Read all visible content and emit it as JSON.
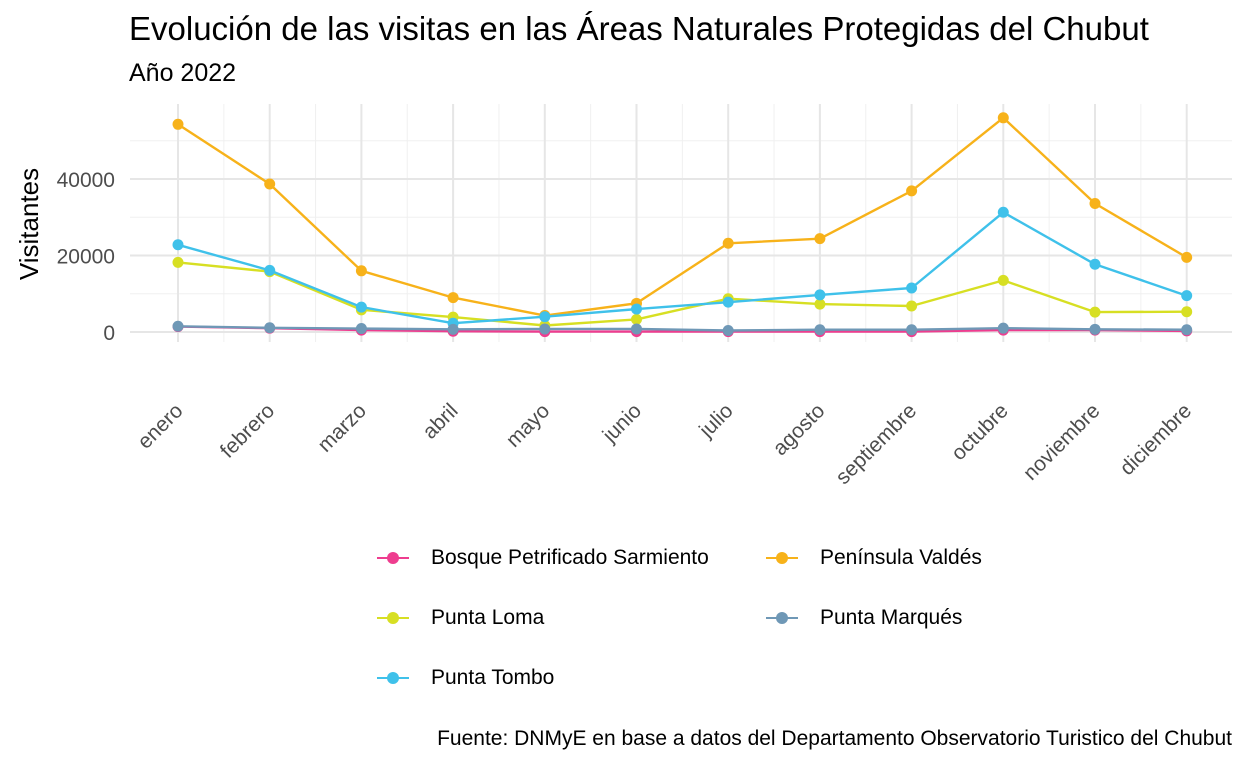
{
  "title": "Evolución de las visitas en las Áreas Naturales Protegidas del Chubut",
  "subtitle": "Año 2022",
  "caption": "Fuente: DNMyE en base a datos del Departamento Observatorio Turistico del Chubut",
  "chart_data": {
    "type": "line",
    "title": "Evolución de las visitas en las Áreas Naturales Protegidas del Chubut",
    "subtitle": "Año 2022",
    "xlabel": "",
    "ylabel": "Visitantes",
    "categories": [
      "enero",
      "febrero",
      "marzo",
      "abril",
      "mayo",
      "junio",
      "julio",
      "agosto",
      "septiembre",
      "octubre",
      "noviembre",
      "diciembre"
    ],
    "y_ticks": [
      0,
      20000,
      40000
    ],
    "ylim": [
      -2500,
      58500
    ],
    "grid": true,
    "legend_position": "bottom",
    "series": [
      {
        "name": "Bosque Petrificado Sarmiento",
        "color": "#EE3D8F",
        "values": [
          1400,
          1000,
          500,
          200,
          100,
          100,
          100,
          100,
          100,
          500,
          500,
          300
        ]
      },
      {
        "name": "Península Valdés",
        "color": "#F7B21A",
        "values": [
          54300,
          38700,
          16000,
          9000,
          4300,
          7500,
          23200,
          24400,
          36900,
          56000,
          33600,
          19500
        ]
      },
      {
        "name": "Punta Loma",
        "color": "#D7DF23",
        "values": [
          18200,
          15800,
          5800,
          3900,
          1700,
          3300,
          8700,
          7300,
          6800,
          13500,
          5200,
          5300
        ]
      },
      {
        "name": "Punta Marqués",
        "color": "#6F98B6",
        "values": [
          1500,
          1100,
          900,
          700,
          800,
          800,
          400,
          600,
          600,
          1000,
          700,
          600
        ]
      },
      {
        "name": "Punta Tombo",
        "color": "#3FC1EA",
        "values": [
          22800,
          16100,
          6500,
          2300,
          4000,
          6000,
          7800,
          9700,
          11500,
          31300,
          17700,
          9500
        ]
      }
    ]
  }
}
